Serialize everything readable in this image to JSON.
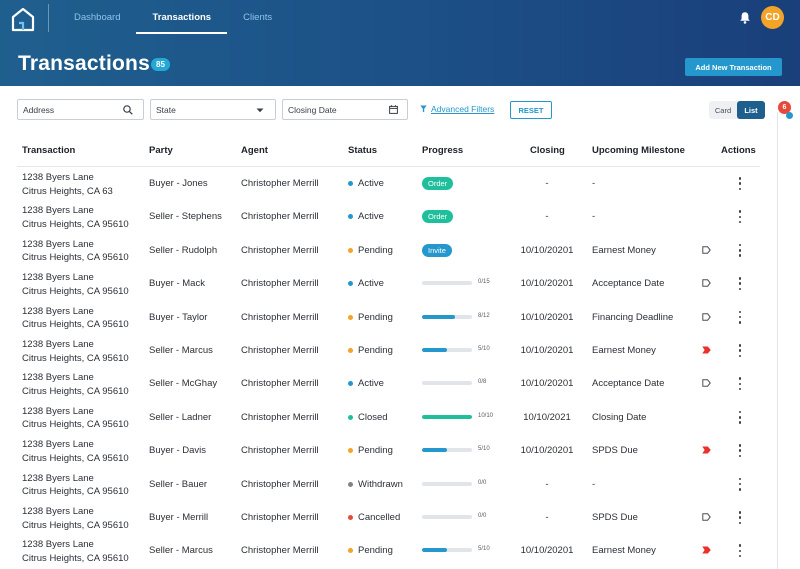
{
  "app": {
    "nav_tabs": [
      {
        "label": "Dashboard",
        "active": false
      },
      {
        "label": "Transactions",
        "active": true
      },
      {
        "label": "Clients",
        "active": false
      }
    ],
    "user_initials": "CD",
    "accent_color": "#2497cc",
    "avatar_color": "#f3a326"
  },
  "page": {
    "title": "Transactions",
    "count": "85",
    "add_button": "Add New Transaction"
  },
  "filters": {
    "address_placeholder": "Address",
    "state_label": "State",
    "closing_date_label": "Closing Date",
    "advanced_filters": "Advanced Filters",
    "reset": "RESET",
    "view_card": "Card",
    "view_list": "List",
    "view_selected": "List"
  },
  "notifications": {
    "count": "6"
  },
  "table": {
    "columns": [
      "Transaction",
      "Party",
      "Agent",
      "Status",
      "Progress",
      "Closing",
      "Upcoming Milestone",
      "Actions"
    ],
    "status_colors": {
      "Active": "#2497cc",
      "Pending": "#f3a326",
      "Closed": "#1fbf9c",
      "Withdrawn": "#7d848c",
      "Cancelled": "#e84a3a"
    },
    "rows": [
      {
        "addr1": "1238 Byers Lane",
        "addr2": "Citrus Heights, CA 63",
        "party": "Buyer - Jones",
        "agent": "Christopher Merrill",
        "status": "Active",
        "progress": {
          "kind": "pill",
          "label": "Order",
          "color": "#1fbf9c"
        },
        "closing": "-",
        "milestone": "-",
        "flag": "none"
      },
      {
        "addr1": "1238 Byers Lane",
        "addr2": "Citrus Heights, CA 95610",
        "party": "Seller - Stephens",
        "agent": "Christopher Merrill",
        "status": "Active",
        "progress": {
          "kind": "pill",
          "label": "Order",
          "color": "#1fbf9c"
        },
        "closing": "-",
        "milestone": "-",
        "flag": "none"
      },
      {
        "addr1": "1238 Byers Lane",
        "addr2": "Citrus Heights, CA 95610",
        "party": "Seller - Rudolph",
        "agent": "Christopher Merrill",
        "status": "Pending",
        "progress": {
          "kind": "pill",
          "label": "Invite",
          "color": "#2497cc"
        },
        "closing": "10/10/20201",
        "milestone": "Earnest Money",
        "flag": "outline"
      },
      {
        "addr1": "1238 Byers Lane",
        "addr2": "Citrus Heights, CA 95610",
        "party": "Buyer - Mack",
        "agent": "Christopher Merrill",
        "status": "Active",
        "progress": {
          "kind": "bar",
          "label": "0/15",
          "fraction": 0,
          "color": "#2497cc"
        },
        "closing": "10/10/20201",
        "milestone": "Acceptance Date",
        "flag": "outline"
      },
      {
        "addr1": "1238 Byers Lane",
        "addr2": "Citrus Heights, CA 95610",
        "party": "Buyer - Taylor",
        "agent": "Christopher Merrill",
        "status": "Pending",
        "progress": {
          "kind": "bar",
          "label": "8/12",
          "fraction": 0.667,
          "color": "#2497cc"
        },
        "closing": "10/10/20201",
        "milestone": "Financing Deadline",
        "flag": "outline"
      },
      {
        "addr1": "1238 Byers Lane",
        "addr2": "Citrus Heights, CA 95610",
        "party": "Seller - Marcus",
        "agent": "Christopher Merrill",
        "status": "Pending",
        "progress": {
          "kind": "bar",
          "label": "5/10",
          "fraction": 0.5,
          "color": "#2497cc"
        },
        "closing": "10/10/20201",
        "milestone": "Earnest Money",
        "flag": "red"
      },
      {
        "addr1": "1238 Byers Lane",
        "addr2": "Citrus Heights, CA 95610",
        "party": "Seller - McGhay",
        "agent": "Christopher Merrill",
        "status": "Active",
        "progress": {
          "kind": "bar",
          "label": "0/8",
          "fraction": 0,
          "color": "#2497cc"
        },
        "closing": "10/10/20201",
        "milestone": "Acceptance Date",
        "flag": "outline"
      },
      {
        "addr1": "1238 Byers Lane",
        "addr2": "Citrus Heights, CA 95610",
        "party": "Seller - Ladner",
        "agent": "Christopher Merrill",
        "status": "Closed",
        "progress": {
          "kind": "bar",
          "label": "10/10",
          "fraction": 1,
          "color": "#1fbf9c"
        },
        "closing": "10/10/2021",
        "milestone": "Closing Date",
        "flag": "none"
      },
      {
        "addr1": "1238 Byers Lane",
        "addr2": "Citrus Heights, CA 95610",
        "party": "Buyer - Davis",
        "agent": "Christopher Merrill",
        "status": "Pending",
        "progress": {
          "kind": "bar",
          "label": "5/10",
          "fraction": 0.5,
          "color": "#2497cc"
        },
        "closing": "10/10/20201",
        "milestone": "SPDS Due",
        "flag": "red"
      },
      {
        "addr1": "1238 Byers Lane",
        "addr2": "Citrus Heights, CA 95610",
        "party": "Seller - Bauer",
        "agent": "Christopher Merrill",
        "status": "Withdrawn",
        "progress": {
          "kind": "bar",
          "label": "0/0",
          "fraction": 0,
          "color": "#2497cc"
        },
        "closing": "-",
        "milestone": "-",
        "flag": "none"
      },
      {
        "addr1": "1238 Byers Lane",
        "addr2": "Citrus Heights, CA 95610",
        "party": "Buyer - Merrill",
        "agent": "Christopher Merrill",
        "status": "Cancelled",
        "progress": {
          "kind": "bar",
          "label": "0/0",
          "fraction": 0,
          "color": "#2497cc"
        },
        "closing": "-",
        "milestone": "SPDS Due",
        "flag": "outline"
      },
      {
        "addr1": "1238 Byers Lane",
        "addr2": "Citrus Heights, CA 95610",
        "party": "Seller - Marcus",
        "agent": "Christopher Merrill",
        "status": "Pending",
        "progress": {
          "kind": "bar",
          "label": "5/10",
          "fraction": 0.5,
          "color": "#2497cc"
        },
        "closing": "10/10/20201",
        "milestone": "Earnest Money",
        "flag": "red"
      }
    ]
  }
}
